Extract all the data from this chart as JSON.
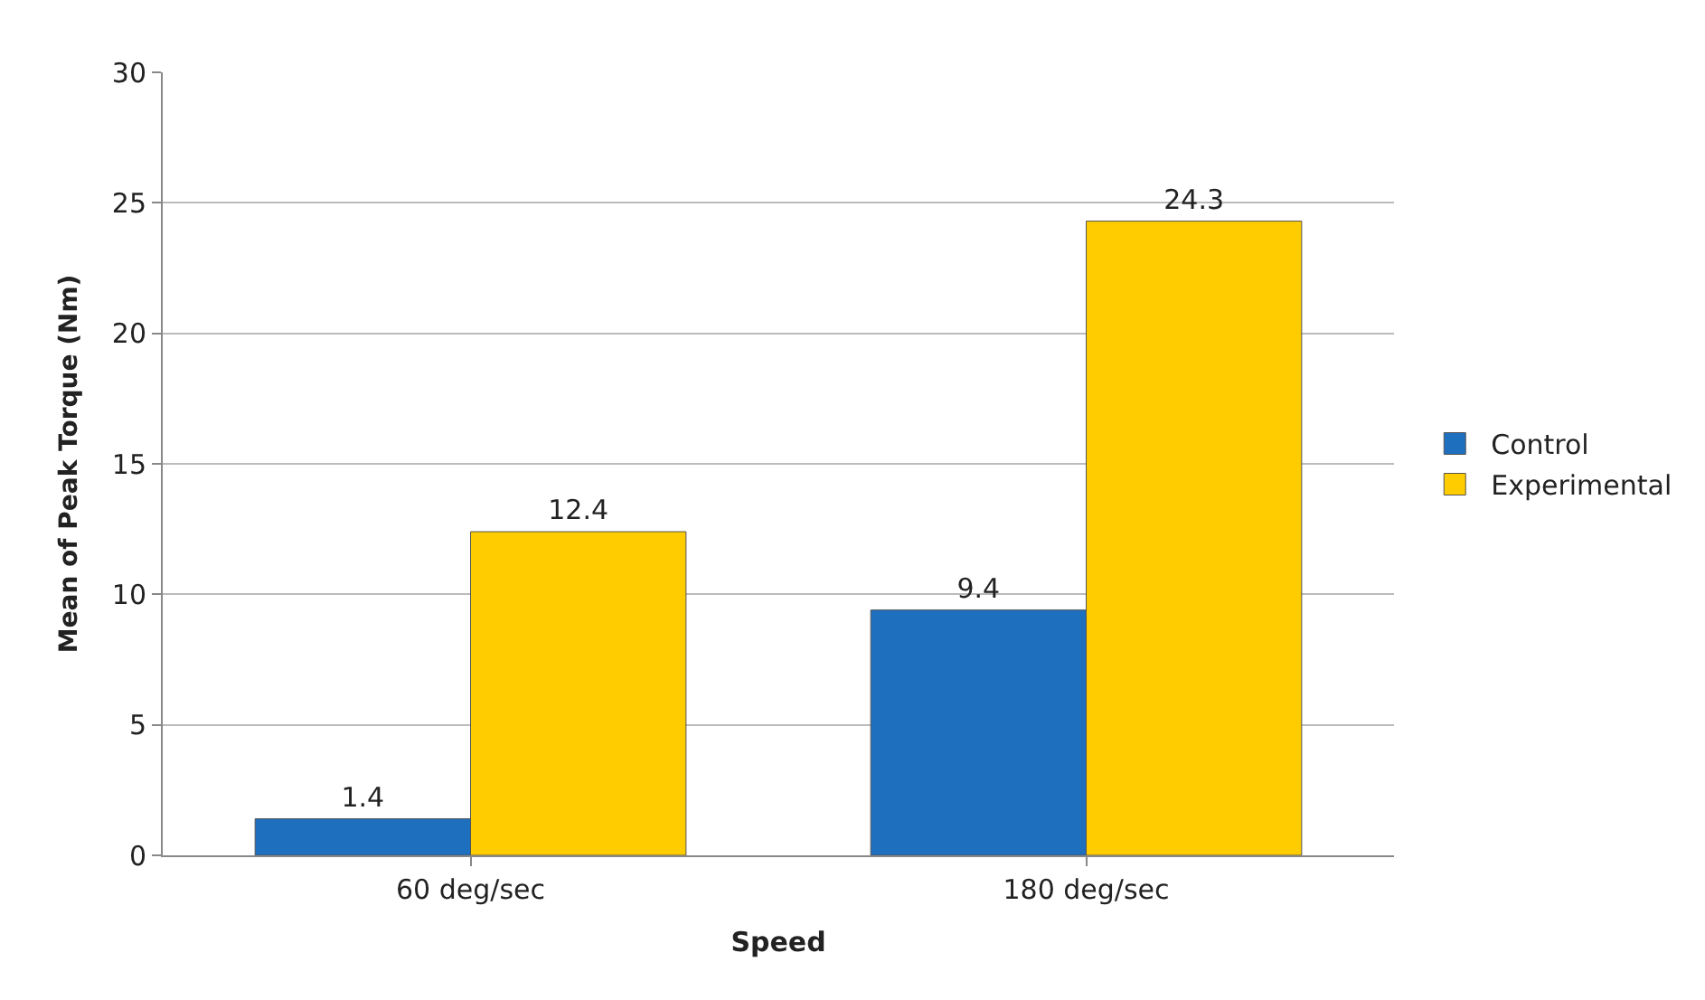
{
  "chart_data": {
    "type": "bar",
    "xlabel": "Speed",
    "ylabel": "Mean of Peak Torque (Nm)",
    "categories": [
      "60 deg/sec",
      "180 deg/sec"
    ],
    "series": [
      {
        "name": "Control",
        "color": "#1f6fbf",
        "values": [
          1.4,
          9.4
        ]
      },
      {
        "name": "Experimental",
        "color": "#ffcc00",
        "values": [
          12.4,
          24.3
        ]
      }
    ],
    "ylim": [
      0,
      30
    ],
    "yticks": [
      0,
      5,
      10,
      15,
      20,
      25,
      30
    ],
    "grid": "y",
    "legend": "right",
    "data_labels": true
  }
}
